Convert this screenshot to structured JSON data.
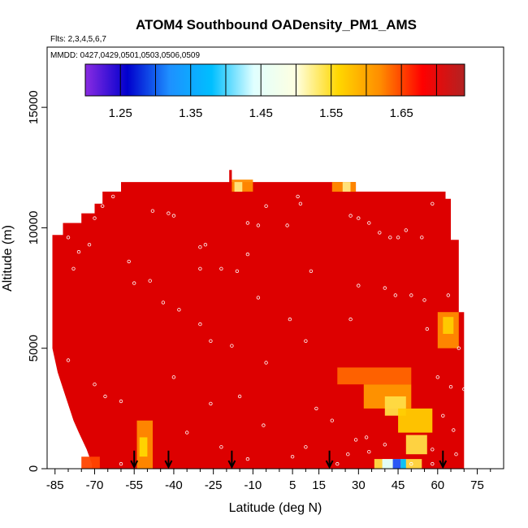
{
  "chart_data": {
    "type": "heatmap",
    "title": "ATOM4 Southbound OADensity_PM1_AMS",
    "subtitle_flights": "Flts: 2,3,4,5,6,7",
    "subtitle_mmdd": "MMDD: 0427,0429,0501,0503,0506,0509",
    "xlabel": "Latitude (deg N)",
    "ylabel": "Altitude (m)",
    "xlim": [
      -88,
      85
    ],
    "ylim": [
      0,
      17500
    ],
    "x_tick_labels": [
      "-85",
      "-70",
      "-55",
      "-40",
      "-25",
      "-10",
      "5",
      "15",
      "30",
      "45",
      "60",
      "75"
    ],
    "x_tick_values": [
      -85,
      -70,
      -55,
      -40,
      -25,
      -10,
      5,
      15,
      30,
      45,
      60,
      75
    ],
    "x_minor_tick_values": [
      -80,
      -75,
      -65,
      -60,
      -50,
      -45,
      -35,
      -30,
      -20,
      -15,
      -5,
      0,
      10,
      20,
      25,
      35,
      40,
      50,
      55,
      65,
      70,
      80
    ],
    "y_tick_labels": [
      "0",
      "5000",
      "10000",
      "15000"
    ],
    "y_tick_values": [
      0,
      5000,
      10000,
      15000
    ],
    "colorbar": {
      "range": [
        1.2,
        1.74
      ],
      "tick_values": [
        1.25,
        1.35,
        1.45,
        1.55,
        1.65
      ],
      "tick_labels": [
        "1.25",
        "1.35",
        "1.45",
        "1.55",
        "1.65"
      ],
      "divisions": [
        1.25,
        1.3,
        1.35,
        1.4,
        1.45,
        1.5,
        1.55,
        1.6,
        1.65,
        1.7
      ],
      "stops": [
        "#8a2be2",
        "#0000cd",
        "#1e90ff",
        "#00bfff",
        "#e0ffff",
        "#ffffe0",
        "#ffd700",
        "#ff8c00",
        "#ff0000",
        "#b22222"
      ]
    },
    "background_value_color": "#dd0000",
    "envelope": [
      [
        -86,
        0
      ],
      [
        -86,
        9700
      ],
      [
        -82,
        9700
      ],
      [
        -82,
        10200
      ],
      [
        -75,
        10200
      ],
      [
        -75,
        10600
      ],
      [
        -70,
        10600
      ],
      [
        -70,
        11000
      ],
      [
        -67,
        11000
      ],
      [
        -67,
        11500
      ],
      [
        -60,
        11500
      ],
      [
        -60,
        11900
      ],
      [
        -19,
        11900
      ],
      [
        -19,
        12400
      ],
      [
        -18,
        12400
      ],
      [
        -18,
        11900
      ],
      [
        29,
        11900
      ],
      [
        29,
        11500
      ],
      [
        63,
        11500
      ],
      [
        63,
        11200
      ],
      [
        65,
        11200
      ],
      [
        65,
        9500
      ],
      [
        68,
        9500
      ],
      [
        68,
        6500
      ],
      [
        70,
        6500
      ],
      [
        70,
        0
      ]
    ],
    "lower_left_cut": [
      [
        -86,
        5000
      ],
      [
        -84,
        4000
      ],
      [
        -81,
        3000
      ],
      [
        -78,
        2000
      ],
      [
        -76,
        1500
      ],
      [
        -73,
        800
      ],
      [
        -71,
        200
      ],
      [
        -71,
        0
      ],
      [
        -86,
        0
      ]
    ],
    "anomalies": [
      {
        "x0": -54,
        "x1": -48,
        "y0": 0,
        "y1": 2000,
        "color": "#ff8c00"
      },
      {
        "x0": -53,
        "x1": -50,
        "y0": 500,
        "y1": 1300,
        "color": "#ffd700"
      },
      {
        "x0": -18,
        "x1": -10,
        "y0": 11500,
        "y1": 12000,
        "color": "#ff8c00"
      },
      {
        "x0": -17,
        "x1": -14,
        "y0": 11500,
        "y1": 11900,
        "color": "#ffe680"
      },
      {
        "x0": 20,
        "x1": 29,
        "y0": 11500,
        "y1": 11900,
        "color": "#ff8c00"
      },
      {
        "x0": 24,
        "x1": 27,
        "y0": 11500,
        "y1": 11900,
        "color": "#ffe680"
      },
      {
        "x0": 22,
        "x1": 50,
        "y0": 3500,
        "y1": 4200,
        "color": "#ff6600"
      },
      {
        "x0": 32,
        "x1": 50,
        "y0": 2500,
        "y1": 3500,
        "color": "#ff9900"
      },
      {
        "x0": 40,
        "x1": 48,
        "y0": 2200,
        "y1": 3000,
        "color": "#ffdd44"
      },
      {
        "x0": 45,
        "x1": 58,
        "y0": 1500,
        "y1": 2500,
        "color": "#ffcc00"
      },
      {
        "x0": 48,
        "x1": 56,
        "y0": 600,
        "y1": 1400,
        "color": "#ffdd44"
      },
      {
        "x0": 36,
        "x1": 54,
        "y0": 0,
        "y1": 400,
        "color": "#ffdd44"
      },
      {
        "x0": 39,
        "x1": 43,
        "y0": 0,
        "y1": 400,
        "color": "#e0ffff"
      },
      {
        "x0": 43,
        "x1": 46,
        "y0": 0,
        "y1": 400,
        "color": "#1e50ff"
      },
      {
        "x0": 46,
        "x1": 48,
        "y0": 0,
        "y1": 400,
        "color": "#00bfff"
      },
      {
        "x0": 60,
        "x1": 68,
        "y0": 5000,
        "y1": 6500,
        "color": "#ff8c00"
      },
      {
        "x0": 62,
        "x1": 66,
        "y0": 5600,
        "y1": 6300,
        "color": "#ffcc00"
      },
      {
        "x0": -75,
        "x1": -68,
        "y0": 0,
        "y1": 500,
        "color": "#ff4400"
      }
    ],
    "markers_latitude": [
      -55,
      -42,
      -18,
      19,
      62
    ],
    "marker_altitude_top": 750,
    "outlier_points": [
      [
        -80,
        9600
      ],
      [
        -70,
        10400
      ],
      [
        -67,
        10900
      ],
      [
        -63,
        11300
      ],
      [
        -48,
        10700
      ],
      [
        -42,
        10600
      ],
      [
        -40,
        10500
      ],
      [
        -30,
        9200
      ],
      [
        -28,
        9300
      ],
      [
        -12,
        10200
      ],
      [
        -8,
        10100
      ],
      [
        -5,
        10900
      ],
      [
        3,
        10100
      ],
      [
        7,
        11300
      ],
      [
        8,
        11000
      ],
      [
        27,
        10500
      ],
      [
        30,
        10400
      ],
      [
        34,
        10200
      ],
      [
        38,
        9800
      ],
      [
        42,
        9600
      ],
      [
        45,
        9600
      ],
      [
        48,
        9900
      ],
      [
        54,
        9600
      ],
      [
        58,
        11000
      ],
      [
        67,
        9900
      ],
      [
        -76,
        9000
      ],
      [
        -72,
        9300
      ],
      [
        -57,
        8600
      ],
      [
        -55,
        7700
      ],
      [
        -49,
        7800
      ],
      [
        -30,
        8300
      ],
      [
        -22,
        8300
      ],
      [
        -16,
        8200
      ],
      [
        -12,
        8900
      ],
      [
        -8,
        7100
      ],
      [
        4,
        6200
      ],
      [
        12,
        8200
      ],
      [
        30,
        7600
      ],
      [
        40,
        7500
      ],
      [
        44,
        7200
      ],
      [
        50,
        7200
      ],
      [
        55,
        7000
      ],
      [
        -78,
        8300
      ],
      [
        -44,
        6900
      ],
      [
        -38,
        6600
      ],
      [
        -30,
        6000
      ],
      [
        -26,
        5300
      ],
      [
        -18,
        5100
      ],
      [
        -5,
        4400
      ],
      [
        10,
        5300
      ],
      [
        27,
        6200
      ],
      [
        56,
        5800
      ],
      [
        64,
        7200
      ],
      [
        -80,
        4500
      ],
      [
        -70,
        3500
      ],
      [
        -66,
        3000
      ],
      [
        -60,
        2800
      ],
      [
        -40,
        3800
      ],
      [
        -26,
        2700
      ],
      [
        -15,
        3000
      ],
      [
        -6,
        1800
      ],
      [
        14,
        2500
      ],
      [
        20,
        2000
      ],
      [
        33,
        1300
      ],
      [
        40,
        1000
      ],
      [
        50,
        200
      ],
      [
        58,
        800
      ],
      [
        62,
        2200
      ],
      [
        65,
        3400
      ],
      [
        68,
        5000
      ],
      [
        70,
        3300
      ],
      [
        71,
        2400
      ],
      [
        66,
        1600
      ],
      [
        67,
        600
      ],
      [
        10,
        900
      ],
      [
        5,
        500
      ],
      [
        -60,
        200
      ],
      [
        -35,
        1500
      ],
      [
        -22,
        900
      ],
      [
        -12,
        400
      ],
      [
        22,
        200
      ],
      [
        26,
        600
      ],
      [
        29,
        1200
      ],
      [
        34,
        700
      ],
      [
        58,
        200
      ],
      [
        60,
        3800
      ]
    ]
  }
}
